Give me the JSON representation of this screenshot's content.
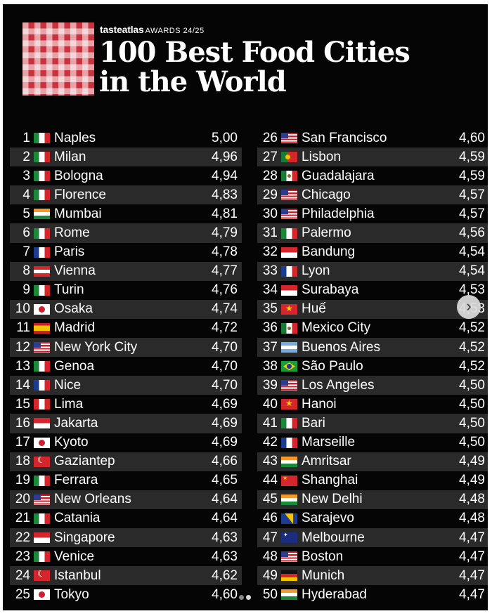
{
  "header": {
    "brand": "tasteatlas",
    "award": "AWARDS 24/25",
    "title_line1": "100 Best Food Cities",
    "title_line2": "in the World"
  },
  "colors": {
    "background": "#050505",
    "row_alt": "#2a2a2a",
    "logo_red": "#c9323f",
    "text": "#ffffff"
  },
  "left_column": [
    {
      "rank": "1",
      "flag": "it",
      "city": "Naples",
      "score": "5,00"
    },
    {
      "rank": "2",
      "flag": "it",
      "city": "Milan",
      "score": "4,96"
    },
    {
      "rank": "3",
      "flag": "it",
      "city": "Bologna",
      "score": "4,94"
    },
    {
      "rank": "4",
      "flag": "it",
      "city": "Florence",
      "score": "4,83"
    },
    {
      "rank": "5",
      "flag": "in",
      "city": "Mumbai",
      "score": "4,81"
    },
    {
      "rank": "6",
      "flag": "it",
      "city": "Rome",
      "score": "4,79"
    },
    {
      "rank": "7",
      "flag": "fr",
      "city": "Paris",
      "score": "4,78"
    },
    {
      "rank": "8",
      "flag": "at",
      "city": "Vienna",
      "score": "4,77"
    },
    {
      "rank": "9",
      "flag": "it",
      "city": "Turin",
      "score": "4,76"
    },
    {
      "rank": "10",
      "flag": "jp",
      "city": "Osaka",
      "score": "4,74"
    },
    {
      "rank": "11",
      "flag": "es",
      "city": "Madrid",
      "score": "4,72"
    },
    {
      "rank": "12",
      "flag": "us",
      "city": "New York City",
      "score": "4,70"
    },
    {
      "rank": "13",
      "flag": "it",
      "city": "Genoa",
      "score": "4,70"
    },
    {
      "rank": "14",
      "flag": "fr",
      "city": "Nice",
      "score": "4,70"
    },
    {
      "rank": "15",
      "flag": "pe",
      "city": "Lima",
      "score": "4,69"
    },
    {
      "rank": "16",
      "flag": "id",
      "city": "Jakarta",
      "score": "4,69"
    },
    {
      "rank": "17",
      "flag": "jp",
      "city": "Kyoto",
      "score": "4,69"
    },
    {
      "rank": "18",
      "flag": "tr",
      "city": "Gaziantep",
      "score": "4,66"
    },
    {
      "rank": "19",
      "flag": "it",
      "city": "Ferrara",
      "score": "4,65"
    },
    {
      "rank": "20",
      "flag": "us",
      "city": "New Orleans",
      "score": "4,64"
    },
    {
      "rank": "21",
      "flag": "it",
      "city": "Catania",
      "score": "4,64"
    },
    {
      "rank": "22",
      "flag": "sg",
      "city": "Singapore",
      "score": "4,63"
    },
    {
      "rank": "23",
      "flag": "it",
      "city": "Venice",
      "score": "4,63"
    },
    {
      "rank": "24",
      "flag": "tr",
      "city": "Istanbul",
      "score": "4,62"
    },
    {
      "rank": "25",
      "flag": "jp",
      "city": "Tokyo",
      "score": "4,60"
    }
  ],
  "right_column": [
    {
      "rank": "26",
      "flag": "us",
      "city": "San Francisco",
      "score": "4,60"
    },
    {
      "rank": "27",
      "flag": "pt",
      "city": "Lisbon",
      "score": "4,59"
    },
    {
      "rank": "28",
      "flag": "mx",
      "city": "Guadalajara",
      "score": "4,59"
    },
    {
      "rank": "29",
      "flag": "us",
      "city": "Chicago",
      "score": "4,57"
    },
    {
      "rank": "30",
      "flag": "us",
      "city": "Philadelphia",
      "score": "4,57"
    },
    {
      "rank": "31",
      "flag": "it",
      "city": "Palermo",
      "score": "4,56"
    },
    {
      "rank": "32",
      "flag": "id",
      "city": "Bandung",
      "score": "4,54"
    },
    {
      "rank": "33",
      "flag": "fr",
      "city": "Lyon",
      "score": "4,54"
    },
    {
      "rank": "34",
      "flag": "id",
      "city": "Surabaya",
      "score": "4,53"
    },
    {
      "rank": "35",
      "flag": "vn",
      "city": "Huế",
      "score": "4,53"
    },
    {
      "rank": "36",
      "flag": "mx",
      "city": "Mexico City",
      "score": "4,52"
    },
    {
      "rank": "37",
      "flag": "ar",
      "city": "Buenos Aires",
      "score": "4,52"
    },
    {
      "rank": "38",
      "flag": "br",
      "city": "São Paulo",
      "score": "4,52"
    },
    {
      "rank": "39",
      "flag": "us",
      "city": "Los Angeles",
      "score": "4,50"
    },
    {
      "rank": "40",
      "flag": "vn",
      "city": "Hanoi",
      "score": "4,50"
    },
    {
      "rank": "41",
      "flag": "it",
      "city": "Bari",
      "score": "4,50"
    },
    {
      "rank": "42",
      "flag": "fr",
      "city": "Marseille",
      "score": "4,50"
    },
    {
      "rank": "43",
      "flag": "in",
      "city": "Amritsar",
      "score": "4,49"
    },
    {
      "rank": "44",
      "flag": "cn",
      "city": "Shanghai",
      "score": "4,49"
    },
    {
      "rank": "45",
      "flag": "in",
      "city": "New Delhi",
      "score": "4,48"
    },
    {
      "rank": "46",
      "flag": "ba",
      "city": "Sarajevo",
      "score": "4,48"
    },
    {
      "rank": "47",
      "flag": "au",
      "city": "Melbourne",
      "score": "4,47"
    },
    {
      "rank": "48",
      "flag": "us",
      "city": "Boston",
      "score": "4,47"
    },
    {
      "rank": "49",
      "flag": "de",
      "city": "Munich",
      "score": "4,47"
    },
    {
      "rank": "50",
      "flag": "in",
      "city": "Hyderabad",
      "score": "4,47"
    }
  ],
  "controls": {
    "next_icon": "chevron-right-icon",
    "next_glyph": "›",
    "page_count": 2,
    "active_page": 1
  }
}
